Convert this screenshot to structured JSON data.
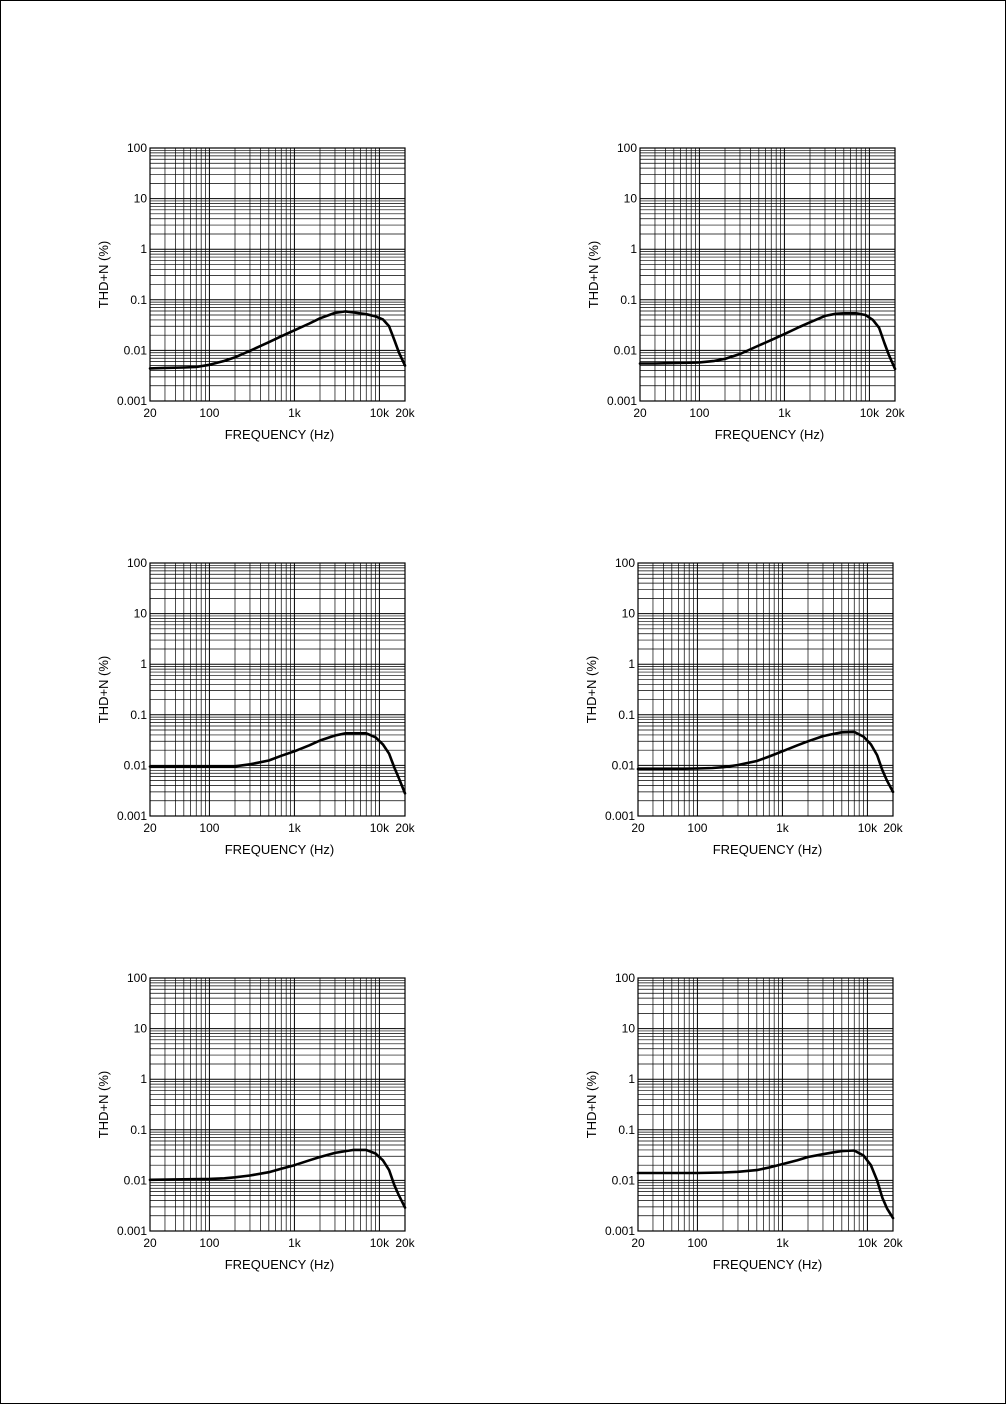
{
  "chart_data": [
    {
      "type": "line",
      "xlabel": "FREQUENCY (Hz)",
      "ylabel": "THD+N (%)",
      "x_scale": "log",
      "y_scale": "log",
      "xlim": [
        20,
        20000
      ],
      "ylim": [
        0.001,
        100
      ],
      "grid": true,
      "x_ticks": [
        {
          "v": 20,
          "label": "20"
        },
        {
          "v": 100,
          "label": "100"
        },
        {
          "v": 1000,
          "label": "1k"
        },
        {
          "v": 10000,
          "label": "10k"
        },
        {
          "v": 20000,
          "label": "20k"
        }
      ],
      "y_ticks": [
        {
          "v": 0.001,
          "label": "0.001"
        },
        {
          "v": 0.01,
          "label": "0.01"
        },
        {
          "v": 0.1,
          "label": "0.1"
        },
        {
          "v": 1,
          "label": "1"
        },
        {
          "v": 10,
          "label": "10"
        },
        {
          "v": 100,
          "label": "100"
        }
      ],
      "series": [
        {
          "x": [
            20,
            30,
            50,
            70,
            100,
            150,
            200,
            300,
            500,
            700,
            1000,
            1500,
            2000,
            3000,
            4000,
            5000,
            7000,
            9000,
            11000,
            13000,
            15000,
            17000,
            20000
          ],
          "y": [
            0.0044,
            0.0045,
            0.0046,
            0.0047,
            0.0052,
            0.0062,
            0.0073,
            0.0098,
            0.0145,
            0.019,
            0.025,
            0.034,
            0.043,
            0.055,
            0.059,
            0.056,
            0.052,
            0.047,
            0.041,
            0.03,
            0.016,
            0.009,
            0.005
          ]
        }
      ]
    },
    {
      "type": "line",
      "xlabel": "FREQUENCY (Hz)",
      "ylabel": "THD+N (%)",
      "x_scale": "log",
      "y_scale": "log",
      "xlim": [
        20,
        20000
      ],
      "ylim": [
        0.001,
        100
      ],
      "grid": true,
      "x_ticks": [
        {
          "v": 20,
          "label": "20"
        },
        {
          "v": 100,
          "label": "100"
        },
        {
          "v": 1000,
          "label": "1k"
        },
        {
          "v": 10000,
          "label": "10k"
        },
        {
          "v": 20000,
          "label": "20k"
        }
      ],
      "y_ticks": [
        {
          "v": 0.001,
          "label": "0.001"
        },
        {
          "v": 0.01,
          "label": "0.01"
        },
        {
          "v": 0.1,
          "label": "0.1"
        },
        {
          "v": 1,
          "label": "1"
        },
        {
          "v": 10,
          "label": "10"
        },
        {
          "v": 100,
          "label": "100"
        }
      ],
      "series": [
        {
          "x": [
            20,
            30,
            50,
            70,
            100,
            150,
            200,
            300,
            500,
            700,
            1000,
            1500,
            2000,
            3000,
            4000,
            5000,
            7000,
            9000,
            11000,
            13000,
            15000,
            17000,
            20000
          ],
          "y": [
            0.0055,
            0.0055,
            0.0056,
            0.0057,
            0.0058,
            0.0062,
            0.0068,
            0.0085,
            0.0125,
            0.016,
            0.021,
            0.029,
            0.036,
            0.048,
            0.053,
            0.054,
            0.054,
            0.05,
            0.04,
            0.028,
            0.014,
            0.008,
            0.0043
          ]
        }
      ]
    },
    {
      "type": "line",
      "xlabel": "FREQUENCY (Hz)",
      "ylabel": "THD+N (%)",
      "x_scale": "log",
      "y_scale": "log",
      "xlim": [
        20,
        20000
      ],
      "ylim": [
        0.001,
        100
      ],
      "grid": true,
      "x_ticks": [
        {
          "v": 20,
          "label": "20"
        },
        {
          "v": 100,
          "label": "100"
        },
        {
          "v": 1000,
          "label": "1k"
        },
        {
          "v": 10000,
          "label": "10k"
        },
        {
          "v": 20000,
          "label": "20k"
        }
      ],
      "y_ticks": [
        {
          "v": 0.001,
          "label": "0.001"
        },
        {
          "v": 0.01,
          "label": "0.01"
        },
        {
          "v": 0.1,
          "label": "0.1"
        },
        {
          "v": 1,
          "label": "1"
        },
        {
          "v": 10,
          "label": "10"
        },
        {
          "v": 100,
          "label": "100"
        }
      ],
      "series": [
        {
          "x": [
            20,
            50,
            100,
            150,
            200,
            300,
            500,
            700,
            1000,
            1500,
            2000,
            3000,
            4000,
            5000,
            7000,
            9000,
            11000,
            13000,
            15000,
            17000,
            20000
          ],
          "y": [
            0.0095,
            0.0095,
            0.0095,
            0.0095,
            0.0096,
            0.0105,
            0.0125,
            0.0155,
            0.019,
            0.025,
            0.031,
            0.039,
            0.043,
            0.043,
            0.043,
            0.036,
            0.026,
            0.017,
            0.009,
            0.0055,
            0.0028
          ]
        }
      ]
    },
    {
      "type": "line",
      "xlabel": "FREQUENCY (Hz)",
      "ylabel": "THD+N (%)",
      "x_scale": "log",
      "y_scale": "log",
      "xlim": [
        20,
        20000
      ],
      "ylim": [
        0.001,
        100
      ],
      "grid": true,
      "x_ticks": [
        {
          "v": 20,
          "label": "20"
        },
        {
          "v": 100,
          "label": "100"
        },
        {
          "v": 1000,
          "label": "1k"
        },
        {
          "v": 10000,
          "label": "10k"
        },
        {
          "v": 20000,
          "label": "20k"
        }
      ],
      "y_ticks": [
        {
          "v": 0.001,
          "label": "0.001"
        },
        {
          "v": 0.01,
          "label": "0.01"
        },
        {
          "v": 0.1,
          "label": "0.1"
        },
        {
          "v": 1,
          "label": "1"
        },
        {
          "v": 10,
          "label": "10"
        },
        {
          "v": 100,
          "label": "100"
        }
      ],
      "series": [
        {
          "x": [
            20,
            50,
            100,
            150,
            200,
            300,
            500,
            700,
            1000,
            1500,
            2000,
            3000,
            4000,
            5000,
            7000,
            9000,
            11000,
            13000,
            15000,
            17000,
            20000
          ],
          "y": [
            0.0085,
            0.0085,
            0.0087,
            0.0089,
            0.0092,
            0.0102,
            0.0122,
            0.015,
            0.019,
            0.025,
            0.03,
            0.038,
            0.042,
            0.045,
            0.046,
            0.037,
            0.026,
            0.016,
            0.008,
            0.005,
            0.003
          ]
        }
      ]
    },
    {
      "type": "line",
      "xlabel": "FREQUENCY (Hz)",
      "ylabel": "THD+N (%)",
      "x_scale": "log",
      "y_scale": "log",
      "xlim": [
        20,
        20000
      ],
      "ylim": [
        0.001,
        100
      ],
      "grid": true,
      "x_ticks": [
        {
          "v": 20,
          "label": "20"
        },
        {
          "v": 100,
          "label": "100"
        },
        {
          "v": 1000,
          "label": "1k"
        },
        {
          "v": 10000,
          "label": "10k"
        },
        {
          "v": 20000,
          "label": "20k"
        }
      ],
      "y_ticks": [
        {
          "v": 0.001,
          "label": "0.001"
        },
        {
          "v": 0.01,
          "label": "0.01"
        },
        {
          "v": 0.1,
          "label": "0.1"
        },
        {
          "v": 1,
          "label": "1"
        },
        {
          "v": 10,
          "label": "10"
        },
        {
          "v": 100,
          "label": "100"
        }
      ],
      "series": [
        {
          "x": [
            20,
            50,
            100,
            150,
            200,
            300,
            500,
            700,
            1000,
            1500,
            2000,
            3000,
            4000,
            5000,
            7000,
            9000,
            11000,
            13000,
            15000,
            17000,
            20000
          ],
          "y": [
            0.0103,
            0.0105,
            0.0107,
            0.011,
            0.0115,
            0.0125,
            0.0145,
            0.017,
            0.02,
            0.025,
            0.029,
            0.035,
            0.038,
            0.04,
            0.04,
            0.034,
            0.025,
            0.016,
            0.008,
            0.005,
            0.0029
          ]
        }
      ]
    },
    {
      "type": "line",
      "xlabel": "FREQUENCY (Hz)",
      "ylabel": "THD+N (%)",
      "x_scale": "log",
      "y_scale": "log",
      "xlim": [
        20,
        20000
      ],
      "ylim": [
        0.001,
        100
      ],
      "grid": true,
      "x_ticks": [
        {
          "v": 20,
          "label": "20"
        },
        {
          "v": 100,
          "label": "100"
        },
        {
          "v": 1000,
          "label": "1k"
        },
        {
          "v": 10000,
          "label": "10k"
        },
        {
          "v": 20000,
          "label": "20k"
        }
      ],
      "y_ticks": [
        {
          "v": 0.001,
          "label": "0.001"
        },
        {
          "v": 0.01,
          "label": "0.01"
        },
        {
          "v": 0.1,
          "label": "0.1"
        },
        {
          "v": 1,
          "label": "1"
        },
        {
          "v": 10,
          "label": "10"
        },
        {
          "v": 100,
          "label": "100"
        }
      ],
      "series": [
        {
          "x": [
            20,
            50,
            100,
            200,
            300,
            500,
            700,
            1000,
            1500,
            2000,
            3000,
            4000,
            5000,
            7000,
            9000,
            11000,
            13000,
            15000,
            17000,
            20000
          ],
          "y": [
            0.014,
            0.014,
            0.014,
            0.0143,
            0.0148,
            0.016,
            0.018,
            0.021,
            0.025,
            0.029,
            0.033,
            0.036,
            0.038,
            0.039,
            0.031,
            0.02,
            0.01,
            0.0045,
            0.0028,
            0.0018
          ]
        }
      ]
    }
  ]
}
